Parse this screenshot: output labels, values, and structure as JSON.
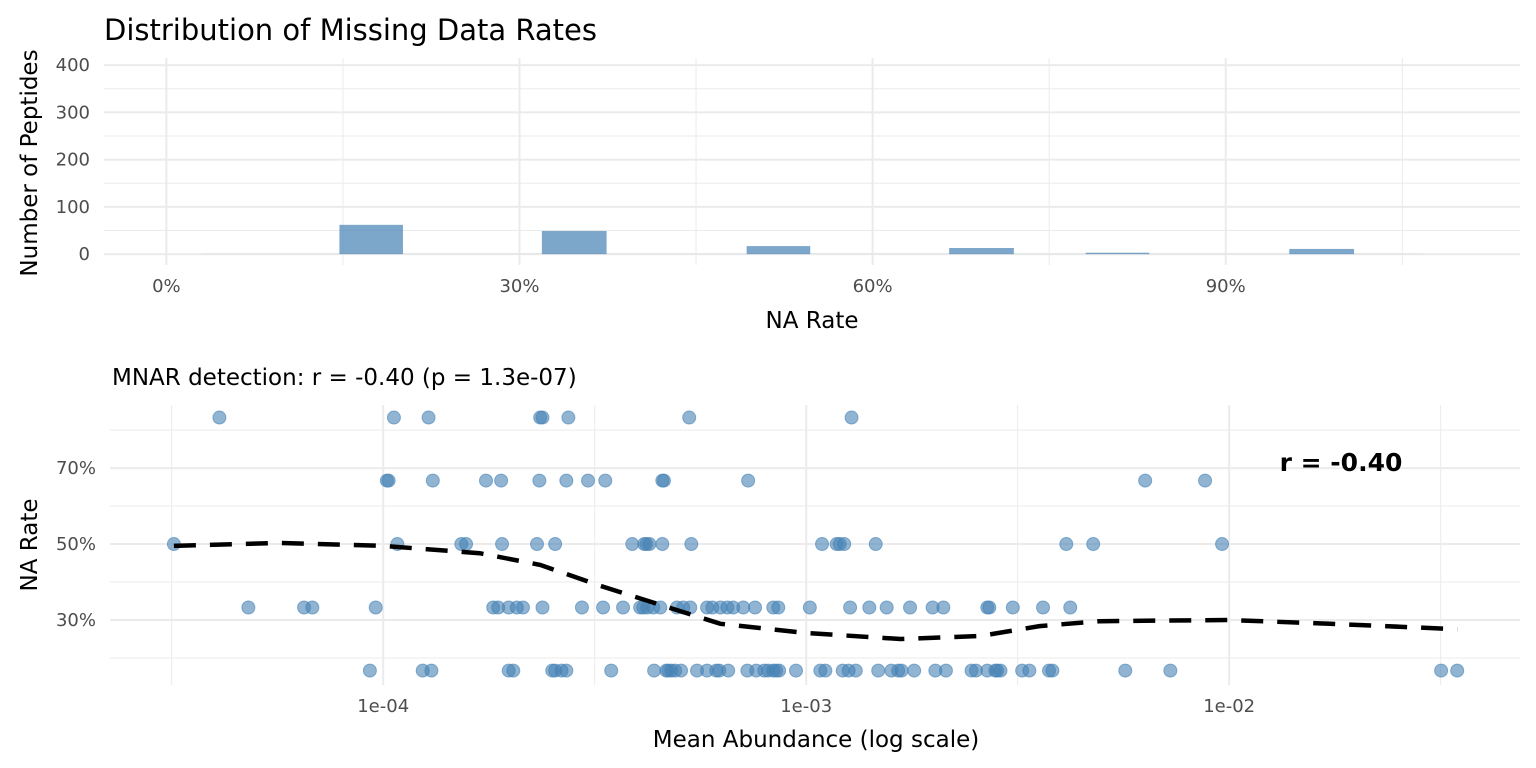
{
  "chart_data": [
    {
      "type": "bar",
      "title": "Distribution of Missing Data Rates",
      "xlabel": "NA Rate",
      "ylabel": "Number of Peptides",
      "xlim": [
        -5.3,
        115
      ],
      "ylim": [
        -23,
        415
      ],
      "x_ticks": [
        "0%",
        "30%",
        "60%",
        "90%"
      ],
      "x_tick_values": [
        0,
        30,
        60,
        90
      ],
      "y_ticks": [
        "0",
        "100",
        "200",
        "300",
        "400"
      ],
      "y_tick_values": [
        0,
        100,
        200,
        300,
        400
      ],
      "grid": true,
      "bar_color": "#4682B4",
      "histogram_range": [
        3.0,
        106.7
      ],
      "bins": [
        {
          "start": 14.7,
          "end": 20.1,
          "count": 62
        },
        {
          "start": 31.9,
          "end": 37.4,
          "count": 49
        },
        {
          "start": 49.3,
          "end": 54.7,
          "count": 17
        },
        {
          "start": 66.5,
          "end": 72.0,
          "count": 13
        },
        {
          "start": 78.1,
          "end": 83.5,
          "count": 3
        },
        {
          "start": 95.4,
          "end": 100.9,
          "count": 11
        }
      ]
    },
    {
      "type": "scatter",
      "title": "MNAR detection: r = -0.40 (p = 1.3e-07)",
      "xlabel": "Mean Abundance (log scale)",
      "ylabel": "NA Rate",
      "x_scale": "log",
      "xlim": [
        2.26e-05,
        0.0487
      ],
      "ylim": [
        12.9,
        86.6
      ],
      "x_ticks": [
        "1e-04",
        "1e-03",
        "1e-02"
      ],
      "x_tick_values": [
        0.0001,
        0.001,
        0.01
      ],
      "y_ticks": [
        "30%",
        "50%",
        "70%"
      ],
      "y_tick_values": [
        30,
        50,
        70
      ],
      "grid": true,
      "point_color": "#4682B4",
      "annotation": "r = -0.40",
      "series": [
        {
          "y": 83.3,
          "x": [
            4.1e-05,
            0.000106,
            0.000128,
            0.000235,
            0.000238,
            0.000274,
            0.000529,
            0.00128
          ]
        },
        {
          "y": 66.7,
          "x": [
            0.000102,
            0.000103,
            0.000131,
            0.000175,
            0.00019,
            0.000234,
            0.000271,
            0.000305,
            0.000335,
            0.000457,
            0.000461,
            0.000729,
            0.00633,
            0.00877
          ]
        },
        {
          "y": 50.0,
          "x": [
            3.2e-05,
            0.000108,
            0.000153,
            0.000157,
            0.000191,
            0.000231,
            0.000255,
            0.000388,
            0.000414,
            0.000419,
            0.000426,
            0.000457,
            0.000535,
            0.00109,
            0.00118,
            0.0012,
            0.00123,
            0.00146,
            0.00412,
            0.00477,
            0.00962
          ]
        },
        {
          "y": 33.3,
          "x": [
            4.8e-05,
            6.5e-05,
            6.8e-05,
            9.6e-05,
            0.000182,
            0.000187,
            0.000198,
            0.000207,
            0.000214,
            0.000238,
            0.000295,
            0.000331,
            0.000369,
            0.000405,
            0.000421,
            0.000412,
            0.000435,
            0.000452,
            0.000495,
            0.000512,
            0.000532,
            0.000583,
            0.0006,
            0.000627,
            0.000651,
            0.000672,
            0.00071,
            0.000757,
            0.000836,
            0.000859,
            0.00102,
            0.00127,
            0.00141,
            0.00155,
            0.00176,
            0.00199,
            0.00211,
            0.00268,
            0.00271,
            0.00308,
            0.00363,
            0.00421
          ]
        },
        {
          "y": 16.7,
          "x": [
            9.3e-05,
            0.000124,
            0.00013,
            0.000198,
            0.000203,
            0.000251,
            0.000255,
            0.000264,
            0.000271,
            0.000346,
            0.000437,
            0.000467,
            0.000472,
            0.00048,
            0.00049,
            0.000506,
            0.000552,
            0.000583,
            0.000613,
            0.000623,
            0.000654,
            0.000726,
            0.000762,
            0.000796,
            0.000813,
            0.000836,
            0.000849,
            0.000863,
            0.000946,
            0.00108,
            0.00111,
            0.00122,
            0.00126,
            0.00131,
            0.00148,
            0.00159,
            0.00165,
            0.00168,
            0.0018,
            0.00202,
            0.00214,
            0.00246,
            0.00252,
            0.00268,
            0.0028,
            0.00283,
            0.00288,
            0.00324,
            0.00337,
            0.00375,
            0.00382,
            0.00568,
            0.00726,
            0.0317,
            0.0346
          ]
        }
      ],
      "smooth": {
        "x": [
          3.2e-05,
          5.7e-05,
          0.0001,
          0.000169,
          0.000235,
          0.000326,
          0.000452,
          0.000627,
          0.001,
          0.00167,
          0.00258,
          0.00356,
          0.00493,
          0.01,
          0.0173,
          0.0346
        ],
        "y": [
          49.5,
          50.3,
          49.5,
          47.6,
          44.5,
          39.0,
          34.0,
          29.0,
          26.6,
          25.0,
          25.8,
          28.4,
          29.7,
          30.0,
          29.0,
          27.6
        ]
      }
    }
  ]
}
